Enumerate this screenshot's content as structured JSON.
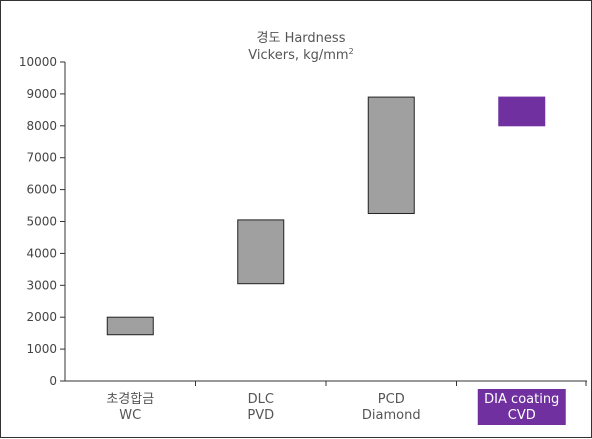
{
  "chart_data": {
    "type": "bar",
    "subtype": "floating-range",
    "title_line1": "경도 Hardness",
    "title_line2": "Vickers, kg/mm",
    "title_superscript": "2",
    "categories": [
      {
        "line1": "초경합금",
        "line2": "WC",
        "highlight": false
      },
      {
        "line1": "DLC",
        "line2": "PVD",
        "highlight": false
      },
      {
        "line1": "PCD",
        "line2": "Diamond",
        "highlight": false
      },
      {
        "line1": "DIA coating",
        "line2": "CVD",
        "highlight": true
      }
    ],
    "ranges": [
      [
        1450,
        2000
      ],
      [
        3050,
        5050
      ],
      [
        5250,
        8900
      ],
      [
        8000,
        8900
      ]
    ],
    "ylim": [
      0,
      10000
    ],
    "yticks": [
      "0",
      "1000",
      "2000",
      "3000",
      "4000",
      "5000",
      "6000",
      "7000",
      "8000",
      "9000",
      "10000"
    ],
    "grid": false,
    "colors": {
      "bar": "#a0a0a0",
      "bar_stroke": "#222222",
      "highlight": "#7030a0",
      "highlight_text": "#ffffff",
      "axis": "#333333"
    }
  }
}
